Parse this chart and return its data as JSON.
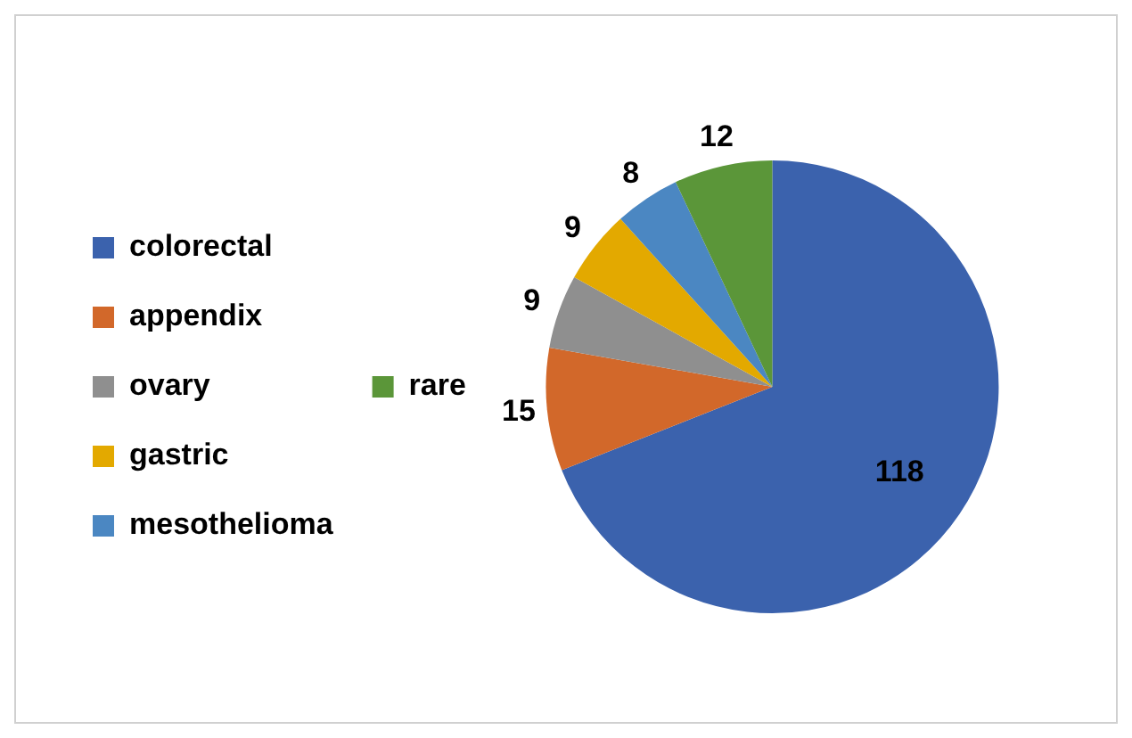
{
  "chart_data": {
    "type": "pie",
    "categories": [
      "colorectal",
      "appendix",
      "ovary",
      "gastric",
      "mesothelioma",
      "rare"
    ],
    "values": [
      118,
      15,
      9,
      9,
      8,
      12
    ],
    "colors": [
      "#3b62ad",
      "#d2682a",
      "#8f8f8f",
      "#e3a900",
      "#4b87c2",
      "#5b9639"
    ],
    "data_labels": true,
    "legend": "left"
  }
}
